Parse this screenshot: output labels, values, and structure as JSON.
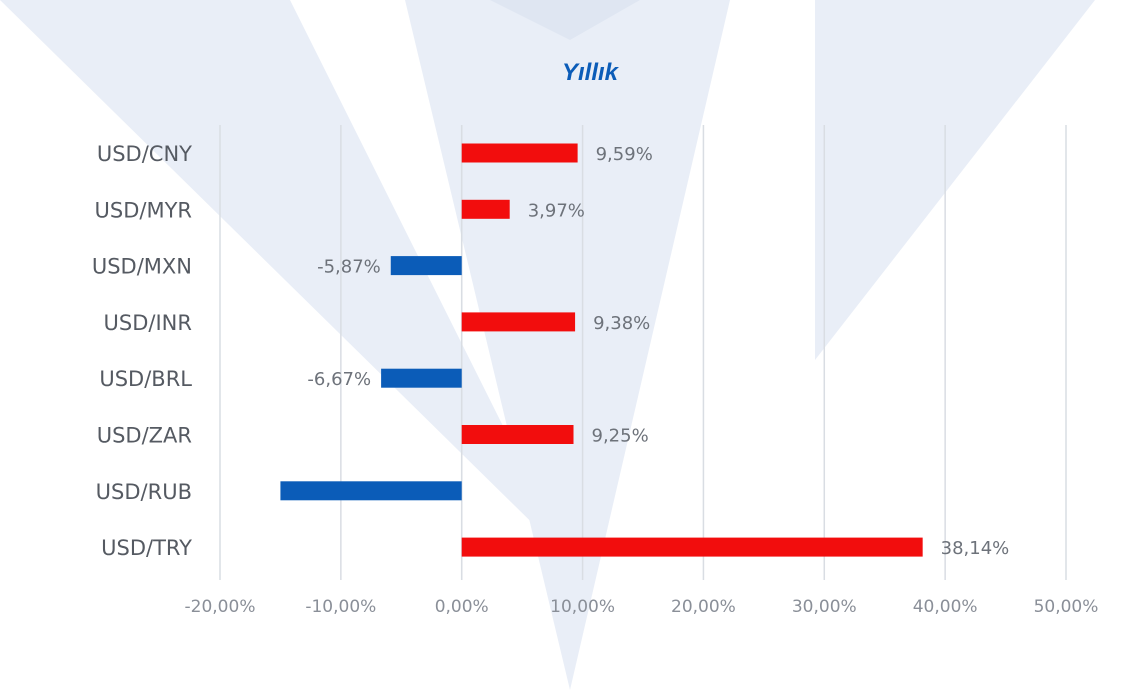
{
  "chart_data": {
    "type": "bar",
    "orientation": "horizontal",
    "title": "Yıllık",
    "categories": [
      "USD/CNY",
      "USD/MYR",
      "USD/MXN",
      "USD/INR",
      "USD/BRL",
      "USD/ZAR",
      "USD/RUB",
      "USD/TRY"
    ],
    "values": [
      9.59,
      3.97,
      -5.87,
      9.38,
      -6.67,
      9.25,
      -15.0,
      38.14
    ],
    "value_labels": [
      "9,59%",
      "3,97%",
      "-5,87%",
      "9,38%",
      "-6,67%",
      "9,25%",
      "",
      "38,14%"
    ],
    "xlim": [
      -20,
      50
    ],
    "x_ticks": [
      -20,
      -10,
      0,
      10,
      20,
      30,
      40,
      50
    ],
    "x_tick_labels": [
      "-20,00%",
      "-10,00%",
      "0,00%",
      "10,00%",
      "20,00%",
      "30,00%",
      "40,00%",
      "50,00%"
    ],
    "grid": true,
    "colors": {
      "positive": "#f20d0d",
      "negative": "#0b5cb8",
      "title": "#0b5cb8"
    }
  }
}
